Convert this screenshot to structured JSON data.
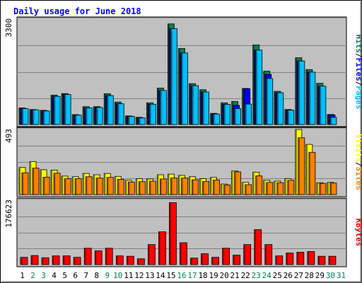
{
  "chart_data": {
    "type": "bar",
    "title": "Daily usage for June 2018",
    "days": [
      "1",
      "2",
      "3",
      "4",
      "5",
      "6",
      "7",
      "8",
      "9",
      "10",
      "11",
      "12",
      "13",
      "14",
      "15",
      "16",
      "17",
      "18",
      "19",
      "20",
      "21",
      "22",
      "23",
      "24",
      "25",
      "26",
      "27",
      "28",
      "29",
      "30",
      "31"
    ],
    "weekend_days": [
      "2",
      "3",
      "9",
      "10",
      "16",
      "17",
      "23",
      "24",
      "30",
      "31"
    ],
    "colors": {
      "hits": "#00805c",
      "files": "#0000ff",
      "pages": "#00c0ff",
      "visits": "#ffff00",
      "sites": "#ff8000",
      "kbytes": "#ff0000",
      "plot_bg": "#c0c0c0",
      "title": "#0000ff",
      "weekend_label": "#00805c"
    },
    "panels": [
      {
        "name": "hits-files-pages",
        "max_label": "3300",
        "ymax": 3300,
        "legend": [
          "Pages",
          "Files",
          "Hits"
        ],
        "series": [
          {
            "name": "Hits",
            "values": [
              520,
              470,
              445,
              920,
              970,
              310,
              560,
              560,
              965,
              705,
              270,
              225,
              680,
              1140,
              3150,
              2380,
              1280,
              1090,
              350,
              680,
              720,
              1130,
              2490,
              1670,
              1040,
              470,
              2090,
              1720,
              1290,
              315,
              0
            ]
          },
          {
            "name": "Files",
            "values": [
              500,
              460,
              425,
              880,
              940,
              295,
              520,
              535,
              905,
              650,
              255,
              205,
              635,
              1065,
              3000,
              2240,
              1215,
              1020,
              330,
              630,
              600,
              1120,
              2330,
              1570,
              995,
              450,
              1990,
              1640,
              1200,
              300,
              0
            ]
          },
          {
            "name": "Pages",
            "values": [
              500,
              460,
              425,
              880,
              940,
              295,
              520,
              535,
              905,
              650,
              255,
              205,
              635,
              1065,
              3000,
              2240,
              1215,
              1020,
              330,
              630,
              500,
              640,
              2330,
              1440,
              995,
              450,
              1990,
              1640,
              1200,
              225,
              0
            ]
          }
        ]
      },
      {
        "name": "visits-sites",
        "max_label": "493",
        "ymax": 493,
        "legend": [
          "Sites",
          "Visits"
        ],
        "series": [
          {
            "name": "Visits",
            "values": [
              205,
              250,
              188,
              185,
              140,
              135,
              160,
              150,
              160,
              138,
              108,
              120,
              118,
              150,
              155,
              145,
              135,
              120,
              130,
              80,
              178,
              92,
              170,
              108,
              102,
              120,
              493,
              380,
              90,
              92,
              0
            ]
          },
          {
            "name": "Sites",
            "values": [
              165,
              200,
              132,
              162,
              120,
              120,
              135,
              125,
              130,
              116,
              95,
              98,
              102,
              118,
              125,
              125,
              112,
              100,
              110,
              72,
              172,
              75,
              142,
              92,
              90,
              108,
              430,
              320,
              85,
              87,
              0
            ]
          }
        ]
      },
      {
        "name": "kbytes",
        "max_label": "176623",
        "ymax": 176623,
        "legend": [
          "KBytes"
        ],
        "series": [
          {
            "name": "KBytes",
            "values": [
              20000,
              25000,
              19000,
              24000,
              24000,
              20000,
              45000,
              38000,
              45000,
              24000,
              23000,
              16000,
              55000,
              90000,
              170000,
              60000,
              18000,
              30000,
              20000,
              45000,
              26000,
              55000,
              96000,
              55000,
              24000,
              32000,
              34000,
              36000,
              23000,
              23000,
              0
            ]
          }
        ]
      }
    ]
  }
}
